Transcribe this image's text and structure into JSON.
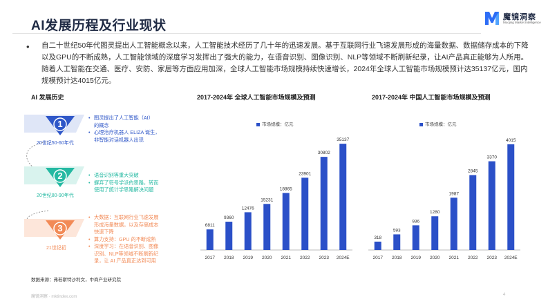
{
  "header": {
    "title": "AI发展历程及行业现状",
    "logo_name": "魔镜洞察",
    "logo_tagline": "Moojing Market Intelligence"
  },
  "intro": {
    "bullet": "•",
    "text": "自二十世纪50年代图灵提出人工智能概念以来，人工智能技术经历了几十年的迅速发展。基于互联网行业飞速发展形成的海量数据、数据储存成本的下降以及GPU的不断成熟，人工智能领域的深度学习发挥出了强大的能力，在语音识别、图像识别、NLP等领域不断刷新纪录，让AI产品真正能够为人所用。随着人工智能在交通、医疗、安防、家居等方面应用加深，全球人工智能市场规模持续快速增长，2024年全球人工智能市场规模预计达35137亿元，国内规模预计达4015亿元。"
  },
  "history": {
    "title": "AI 发展历史",
    "stages": [
      {
        "num": "1",
        "era": "20世纪50-60年代",
        "color": "#2f57c8",
        "items": [
          [
            "图灵提出了人工智能（AI）",
            "的概念"
          ],
          [
            "心理治疗机器人 ELIZA 诞生，",
            "非智能对话机器人出现"
          ]
        ]
      },
      {
        "num": "2",
        "era": "20世纪80-90年代",
        "color": "#24b9a2",
        "items": [
          [
            "语音识别等重大突破"
          ],
          [
            "摒弃了符号学派的思路，转而",
            "使用了统计学思路解决问题"
          ]
        ]
      },
      {
        "num": "3",
        "era": "21世纪初",
        "color": "#f28a56",
        "items": [
          [
            "大数据：互联网行业飞速发展",
            "形成海量数据，以及存储成本",
            "快速下降"
          ],
          [
            "算力支持：GPU 的不断成熟"
          ],
          [
            "深度学习：在语音识别、图像",
            "识别、NLP等领域不断刷新纪",
            "录，让 AI 产品真正达到可用"
          ]
        ]
      }
    ]
  },
  "chart_data": [
    {
      "type": "bar",
      "title": "2017-2024年 全球人工智能市场规模及预测",
      "categories": [
        "2017",
        "2018",
        "2019",
        "2020",
        "2021",
        "2022",
        "2023",
        "2024E"
      ],
      "series": [
        {
          "name": "市场规模：亿元",
          "values": [
            6811,
            9360,
            12476,
            15231,
            18865,
            23901,
            30802,
            35137
          ]
        }
      ],
      "color": "#2b50c8",
      "legend": "top-left",
      "grid": false,
      "ylim": [
        0,
        37000
      ]
    },
    {
      "type": "bar",
      "title": "2017-2024年 中国人工智能市场规模及预测",
      "categories": [
        "2017",
        "2018",
        "2019",
        "2020",
        "2021",
        "2022",
        "2023",
        "2024E"
      ],
      "series": [
        {
          "name": "市场规模：亿元",
          "values": [
            318,
            593,
            936,
            1280,
            1987,
            2845,
            3370,
            4015
          ]
        }
      ],
      "color": "#2b50c8",
      "legend": "top-left",
      "grid": false,
      "ylim": [
        0,
        4250
      ]
    }
  ],
  "source": "数据来源：弗若斯特沙利文，中商产业研究院",
  "footer": "魔镜洞察 · mktindex.com",
  "page_number": "4"
}
